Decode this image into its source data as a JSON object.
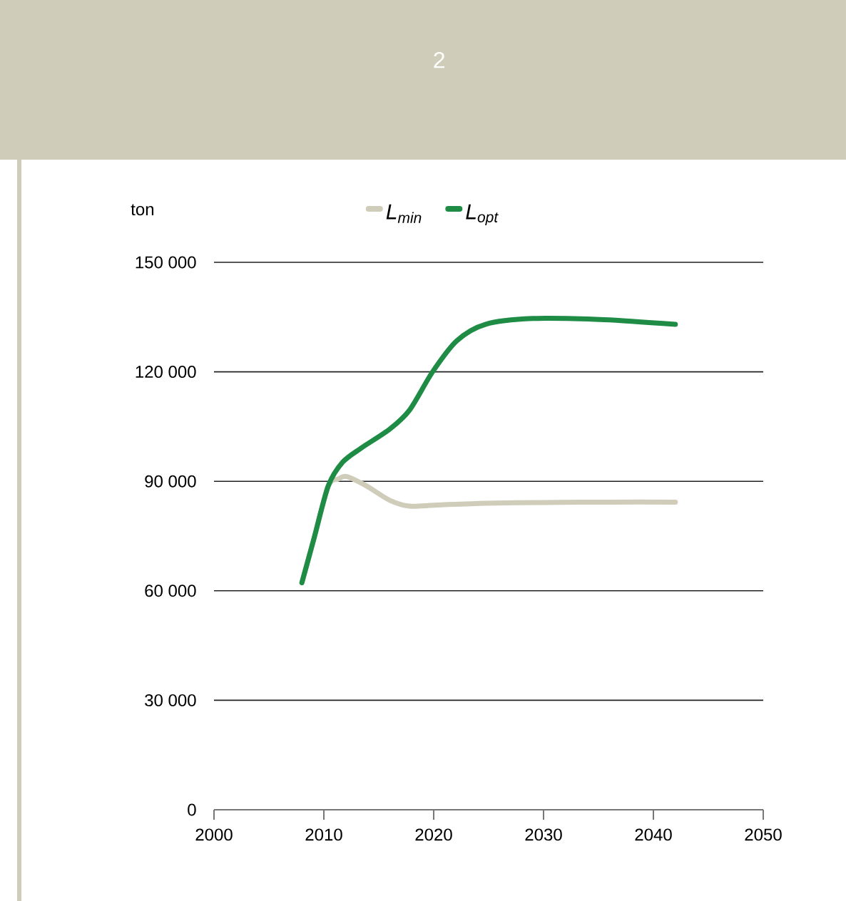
{
  "chart_data": {
    "type": "line",
    "title": "2",
    "ylabel": "ton",
    "xlim": [
      2000,
      2050
    ],
    "xticks": [
      2000,
      2010,
      2020,
      2030,
      2040,
      2050
    ],
    "ylim": [
      0,
      150000
    ],
    "yticks": [
      {
        "value": 0,
        "label": "0"
      },
      {
        "value": 30000,
        "label": "30 000"
      },
      {
        "value": 60000,
        "label": "60 000"
      },
      {
        "value": 90000,
        "label": "90 000"
      },
      {
        "value": 120000,
        "label": "120 000"
      },
      {
        "value": 150000,
        "label": "150 000"
      }
    ],
    "grid": "y",
    "legend": "top",
    "line_style": "solid",
    "marker": "none",
    "series": [
      {
        "name": "L$_{min}$",
        "color": "#cfcdb9",
        "x": [
          2008,
          2009.1,
          2010.4,
          2011.3,
          2012.1,
          2013.9,
          2016,
          2017.8,
          2020.3,
          2024.7,
          2030,
          2036,
          2042
        ],
        "values": [
          62200,
          74300,
          88700,
          90600,
          91300,
          88700,
          84800,
          83200,
          83500,
          84000,
          84200,
          84300,
          84300
        ]
      },
      {
        "name": "L$_{opt}$",
        "color": "#1e8c45",
        "x": [
          2008,
          2009.1,
          2010.4,
          2011.7,
          2013.4,
          2016,
          2017.8,
          2019.9,
          2022.1,
          2024.7,
          2029,
          2035.5,
          2042
        ],
        "values": [
          62200,
          74300,
          88700,
          95200,
          99100,
          104300,
          109500,
          120000,
          128500,
          133000,
          134600,
          134300,
          133000
        ]
      }
    ]
  }
}
